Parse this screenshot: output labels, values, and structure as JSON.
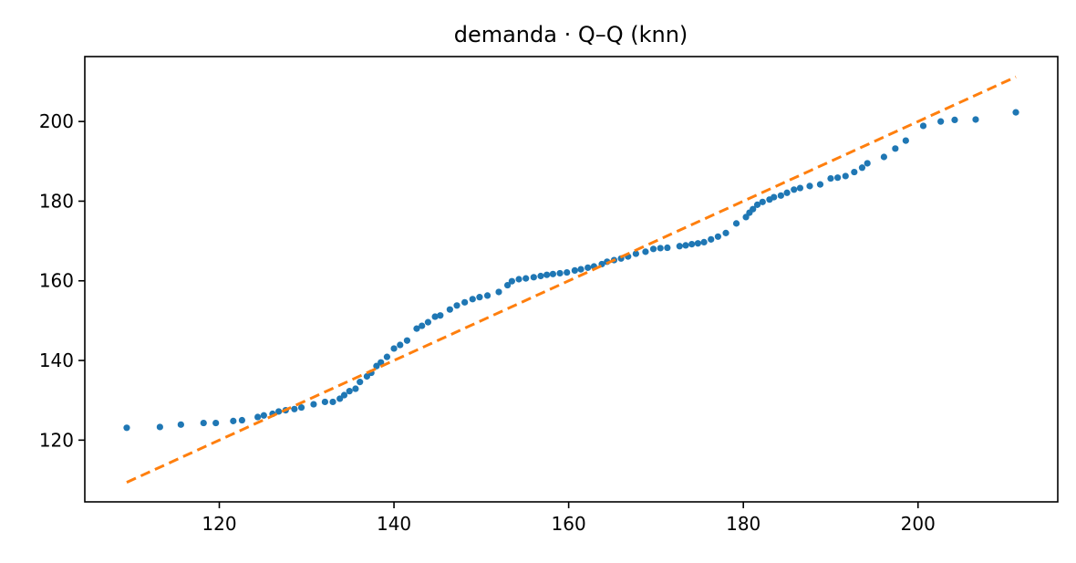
{
  "chart_data": {
    "type": "scatter",
    "title": "demanda · Q–Q (knn)",
    "xlabel": "",
    "ylabel": "",
    "xlim": [
      104.6,
      216.0
    ],
    "ylim": [
      104.5,
      216.3
    ],
    "xticks": [
      120,
      140,
      160,
      180,
      200
    ],
    "yticks": [
      120,
      140,
      160,
      180,
      200
    ],
    "grid": false,
    "series": [
      {
        "kind": "points",
        "color": "#1f77b4",
        "points": [
          [
            109.4,
            123.1
          ],
          [
            113.2,
            123.3
          ],
          [
            115.6,
            123.9
          ],
          [
            118.2,
            124.3
          ],
          [
            119.6,
            124.3
          ],
          [
            121.6,
            124.8
          ],
          [
            122.6,
            125.0
          ],
          [
            124.4,
            125.8
          ],
          [
            125.1,
            126.2
          ],
          [
            126.1,
            126.6
          ],
          [
            126.8,
            127.2
          ],
          [
            127.6,
            127.5
          ],
          [
            128.6,
            127.8
          ],
          [
            129.4,
            128.2
          ],
          [
            130.8,
            129.0
          ],
          [
            132.1,
            129.6
          ],
          [
            133.0,
            129.6
          ],
          [
            133.8,
            130.4
          ],
          [
            134.3,
            131.3
          ],
          [
            134.9,
            132.3
          ],
          [
            135.6,
            132.9
          ],
          [
            136.1,
            134.6
          ],
          [
            136.9,
            136.0
          ],
          [
            137.4,
            136.9
          ],
          [
            138.0,
            138.6
          ],
          [
            138.5,
            139.5
          ],
          [
            139.2,
            140.9
          ],
          [
            140.0,
            143.0
          ],
          [
            140.7,
            143.9
          ],
          [
            141.5,
            145.0
          ],
          [
            142.6,
            148.0
          ],
          [
            143.2,
            148.7
          ],
          [
            143.9,
            149.6
          ],
          [
            144.7,
            151.0
          ],
          [
            145.3,
            151.3
          ],
          [
            146.4,
            152.8
          ],
          [
            147.2,
            153.8
          ],
          [
            148.1,
            154.6
          ],
          [
            149.0,
            155.4
          ],
          [
            149.8,
            155.9
          ],
          [
            150.7,
            156.3
          ],
          [
            152.0,
            157.2
          ],
          [
            153.0,
            158.9
          ],
          [
            153.5,
            159.9
          ],
          [
            154.3,
            160.4
          ],
          [
            155.1,
            160.6
          ],
          [
            156.0,
            160.9
          ],
          [
            156.8,
            161.2
          ],
          [
            157.5,
            161.5
          ],
          [
            158.2,
            161.7
          ],
          [
            159.0,
            161.9
          ],
          [
            159.8,
            162.1
          ],
          [
            160.7,
            162.6
          ],
          [
            161.4,
            162.9
          ],
          [
            162.2,
            163.3
          ],
          [
            162.9,
            163.6
          ],
          [
            163.8,
            164.2
          ],
          [
            164.4,
            164.8
          ],
          [
            165.2,
            165.2
          ],
          [
            166.0,
            165.6
          ],
          [
            166.8,
            166.1
          ],
          [
            167.7,
            166.8
          ],
          [
            168.8,
            167.3
          ],
          [
            169.7,
            168.0
          ],
          [
            170.5,
            168.2
          ],
          [
            171.3,
            168.3
          ],
          [
            172.7,
            168.7
          ],
          [
            173.4,
            168.9
          ],
          [
            174.1,
            169.2
          ],
          [
            174.8,
            169.4
          ],
          [
            175.5,
            169.7
          ],
          [
            176.3,
            170.4
          ],
          [
            177.1,
            171.1
          ],
          [
            178.0,
            172.0
          ],
          [
            179.2,
            174.4
          ],
          [
            180.3,
            176.0
          ],
          [
            180.7,
            177.1
          ],
          [
            181.1,
            178.0
          ],
          [
            181.6,
            179.1
          ],
          [
            182.2,
            179.8
          ],
          [
            183.0,
            180.4
          ],
          [
            183.5,
            181.0
          ],
          [
            184.3,
            181.4
          ],
          [
            185.0,
            182.1
          ],
          [
            185.8,
            182.9
          ],
          [
            186.5,
            183.3
          ],
          [
            187.6,
            183.8
          ],
          [
            188.8,
            184.2
          ],
          [
            190.0,
            185.7
          ],
          [
            190.8,
            185.9
          ],
          [
            191.7,
            186.3
          ],
          [
            192.7,
            187.3
          ],
          [
            193.6,
            188.4
          ],
          [
            194.2,
            189.5
          ],
          [
            196.1,
            191.1
          ],
          [
            197.4,
            193.2
          ],
          [
            198.6,
            195.2
          ],
          [
            200.6,
            198.9
          ],
          [
            202.6,
            200.0
          ],
          [
            204.2,
            200.4
          ],
          [
            206.6,
            200.5
          ],
          [
            211.2,
            202.3
          ]
        ]
      },
      {
        "kind": "reference-line",
        "style": "dashed",
        "color": "#ff7f0e",
        "points": [
          [
            109.4,
            109.4
          ],
          [
            211.2,
            211.2
          ]
        ]
      }
    ]
  }
}
